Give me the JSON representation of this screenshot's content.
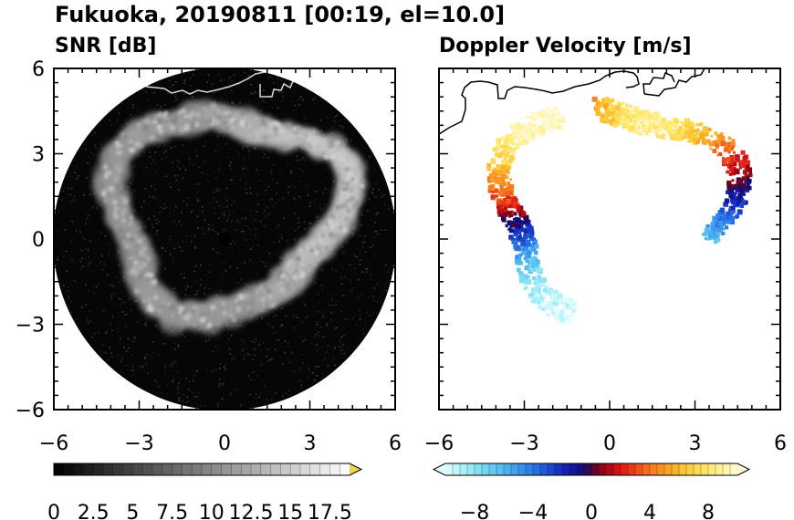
{
  "figure": {
    "title": "Fukuoka, 20190811 [00:19, el=10.0]"
  },
  "chart_data": [
    {
      "type": "heatmap",
      "title": "SNR [dB]",
      "projection": "PPI (plan position indicator), circular radar scan",
      "xlim": [
        -6,
        6
      ],
      "ylim": [
        -6,
        6
      ],
      "xticks": [
        -6,
        -3,
        0,
        3,
        6
      ],
      "yticks": [
        6,
        3,
        0,
        -3,
        -6
      ],
      "x_tick_labels": [
        "−6",
        "−3",
        "0",
        "3",
        "6"
      ],
      "y_tick_labels": [
        "6",
        "3",
        "0",
        "−3",
        "−6"
      ],
      "colormap": "grayscale black to white",
      "colorbar": {
        "min": 0,
        "max": 18.75,
        "extend": "max",
        "tick_values": [
          0,
          2.5,
          5,
          7.5,
          10,
          12.5,
          15,
          17.5
        ],
        "tick_labels": [
          "0",
          "2.5",
          "5",
          "7.5",
          "10",
          "12.5",
          "15",
          "17.5"
        ]
      },
      "echo_ring": {
        "center_x": 0.0,
        "center_y": 1.0,
        "mean_radius": 3.7,
        "peak_snr": 12
      }
    },
    {
      "type": "heatmap",
      "title": "Doppler Velocity [m/s]",
      "projection": "PPI (plan position indicator), circular radar scan",
      "xlim": [
        -6,
        6
      ],
      "ylim": [
        -6,
        6
      ],
      "xticks": [
        -6,
        -3,
        0,
        3,
        6
      ],
      "x_tick_labels": [
        "−6",
        "−3",
        "0",
        "3",
        "6"
      ],
      "colormap": "diverging: light cyan - blue - navy - dark red - red - orange - yellow - cream",
      "colorbar": {
        "min": -10,
        "max": 10,
        "extend": "both",
        "tick_values": [
          -8,
          -4,
          0,
          4,
          8
        ],
        "tick_labels": [
          "−8",
          "−4",
          "0",
          "4",
          "8"
        ]
      },
      "colors": {
        "coastline": "#000000"
      }
    }
  ]
}
